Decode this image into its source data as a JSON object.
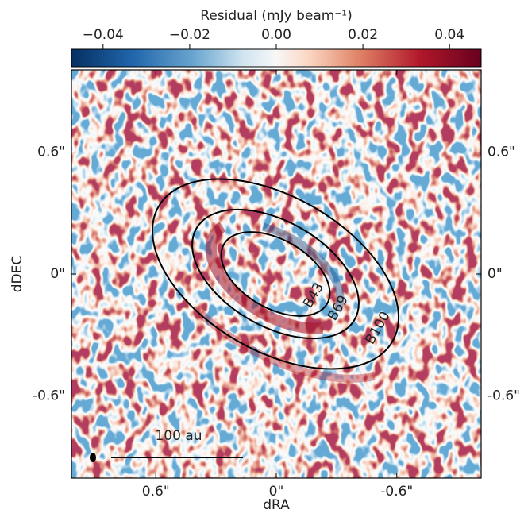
{
  "chart_data": {
    "type": "heatmap",
    "colorbar_label": "Residual (mJy beam⁻¹)",
    "clim": [
      -0.0473,
      0.0473
    ],
    "cticks": [
      {
        "value": -0.04,
        "label": "−0.04"
      },
      {
        "value": -0.02,
        "label": "−0.02"
      },
      {
        "value": 0,
        "label": "0.00"
      },
      {
        "value": 0.02,
        "label": "0.02"
      },
      {
        "value": 0.04,
        "label": "0.04"
      }
    ],
    "xlabel": "dRA",
    "ylabel": "dDEC",
    "xlim": [
      1.02,
      -1.02
    ],
    "ylim": [
      -1.005,
      1.005
    ],
    "xticks": [
      {
        "value": 0.6,
        "label": "0.6\""
      },
      {
        "value": 0,
        "label": "0\""
      },
      {
        "value": -0.6,
        "label": "-0.6\""
      }
    ],
    "yticks": [
      {
        "value": -0.6,
        "label": "-0.6\""
      },
      {
        "value": 0,
        "label": "0\""
      },
      {
        "value": 0.6,
        "label": "0.6\""
      }
    ],
    "rings": [
      "B43",
      "B69",
      "B100"
    ],
    "scale_bar_label": "100 au"
  }
}
